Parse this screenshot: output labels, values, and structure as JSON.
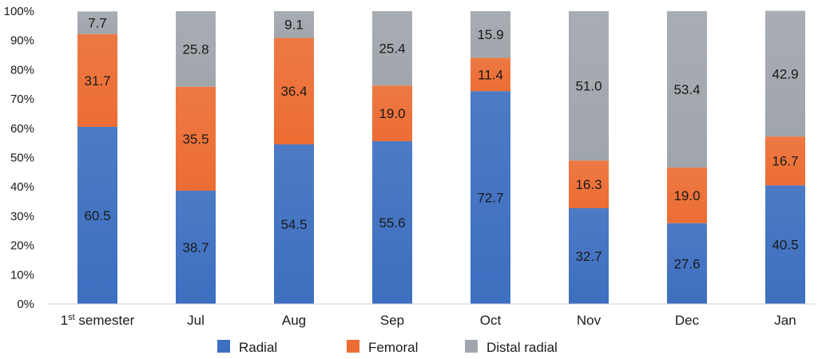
{
  "chart_data": {
    "type": "bar",
    "stacked": true,
    "title": "",
    "xlabel": "",
    "ylabel": "",
    "ylim": [
      0,
      100
    ],
    "y_ticks": [
      "0%",
      "10%",
      "20%",
      "30%",
      "40%",
      "50%",
      "60%",
      "70%",
      "80%",
      "90%",
      "100%"
    ],
    "categories": [
      {
        "base": "1",
        "sup": "st",
        "rest": " semester",
        "full": "1st semester"
      },
      {
        "base": "Jul",
        "sup": "",
        "rest": "",
        "full": "Jul"
      },
      {
        "base": "Aug",
        "sup": "",
        "rest": "",
        "full": "Aug"
      },
      {
        "base": "Sep",
        "sup": "",
        "rest": "",
        "full": "Sep"
      },
      {
        "base": "Oct",
        "sup": "",
        "rest": "",
        "full": "Oct"
      },
      {
        "base": "Nov",
        "sup": "",
        "rest": "",
        "full": "Nov"
      },
      {
        "base": "Dec",
        "sup": "",
        "rest": "",
        "full": "Dec"
      },
      {
        "base": "Jan",
        "sup": "",
        "rest": "",
        "full": "Jan"
      }
    ],
    "series": [
      {
        "name": "Radial",
        "color": "#3d6fc0",
        "values": [
          60.5,
          38.7,
          54.5,
          55.6,
          72.7,
          32.7,
          27.6,
          40.5
        ]
      },
      {
        "name": "Femoral",
        "color": "#ec6d33",
        "values": [
          31.7,
          35.5,
          36.4,
          19.0,
          11.4,
          16.3,
          19.0,
          16.7
        ]
      },
      {
        "name": "Distal radial",
        "color": "#a0a6ac",
        "values": [
          7.7,
          25.8,
          9.1,
          25.4,
          15.9,
          51.0,
          53.4,
          42.9
        ]
      }
    ],
    "data_labels": [
      [
        "60.5",
        "38.7",
        "54.5",
        "55.6",
        "72.7",
        "32.7",
        "27.6",
        "40.5"
      ],
      [
        "31.7",
        "35.5",
        "36.4",
        "19.0",
        "11.4",
        "16.3",
        "19.0",
        "16.7"
      ],
      [
        "7.7",
        "25.8",
        "9.1",
        "25.4",
        "15.9",
        "51.0",
        "53.4",
        "42.9"
      ]
    ],
    "grid": false,
    "legend": {
      "position": "bottom-center",
      "entries": [
        "Radial",
        "Femoral",
        "Distal radial"
      ]
    }
  }
}
